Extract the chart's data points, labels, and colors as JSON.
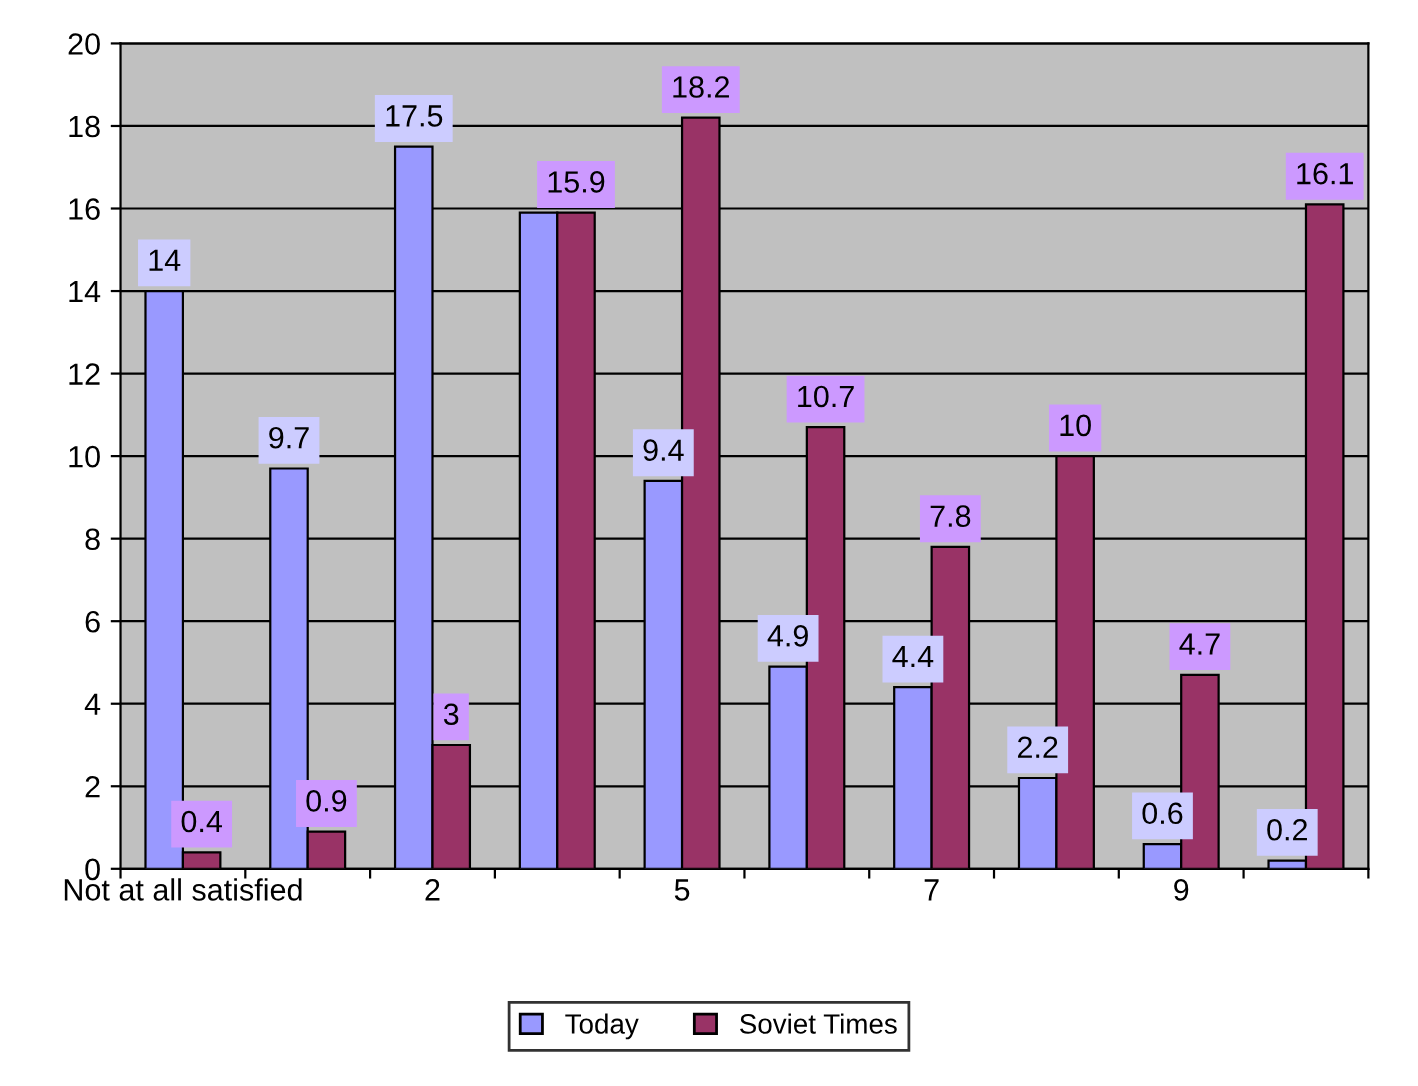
{
  "chart_data": {
    "type": "bar",
    "categories": [
      "Not at all satisfied",
      null,
      "2",
      null,
      "5",
      null,
      "7",
      null,
      "9",
      null
    ],
    "series": [
      {
        "name": "Today",
        "color": "#9999ff",
        "values": [
          14,
          9.7,
          17.5,
          15.9,
          9.4,
          4.9,
          4.4,
          2.2,
          0.6,
          0.2
        ],
        "value_labels": [
          "14",
          "9.7",
          "17.5",
          null,
          "9.4",
          "4.9",
          "4.4",
          "2.2",
          "0.6",
          "0.2"
        ]
      },
      {
        "name": "Soviet Times",
        "color": "#993366",
        "values": [
          0.4,
          0.9,
          3,
          15.9,
          18.2,
          10.7,
          7.8,
          10,
          4.7,
          16.1
        ],
        "value_labels": [
          "0.4",
          "0.9",
          "3",
          "15.9",
          "18.2",
          "10.7",
          "7.8",
          "10",
          "4.7",
          "16.1"
        ]
      }
    ],
    "ylim": [
      0,
      20
    ],
    "yticks": [
      0,
      2,
      4,
      6,
      8,
      10,
      12,
      14,
      16,
      18,
      20
    ],
    "grid": "y",
    "legend": "bottom"
  }
}
